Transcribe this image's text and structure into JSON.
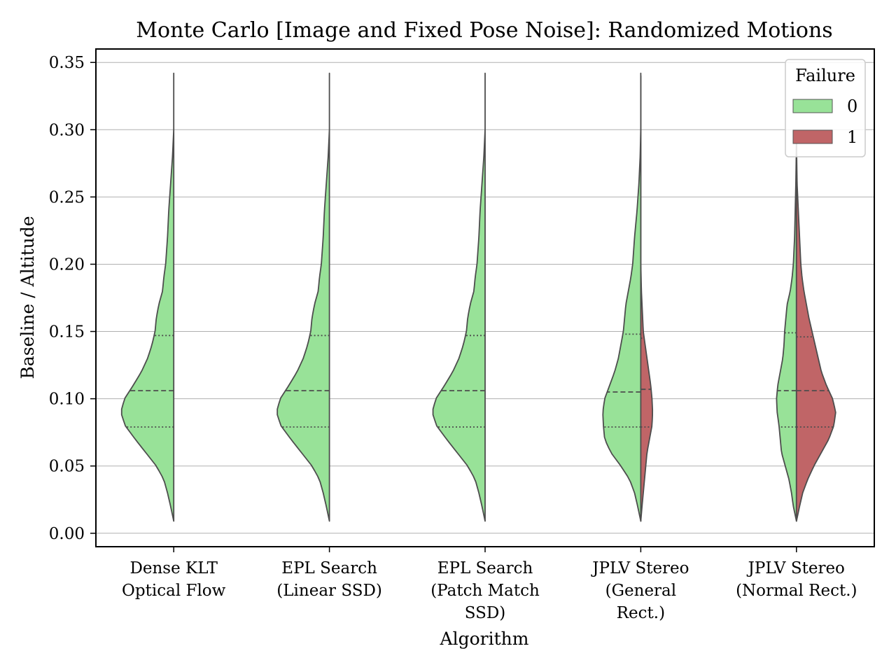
{
  "chart_data": {
    "type": "violin",
    "title": "Monte Carlo [Image and Fixed Pose Noise]: Randomized Motions",
    "xlabel": "Algorithm",
    "ylabel": "Baseline / Altitude",
    "ylim": [
      -0.01,
      0.36
    ],
    "yticks": [
      "0.00",
      "0.05",
      "0.10",
      "0.15",
      "0.20",
      "0.25",
      "0.30",
      "0.35"
    ],
    "grid": "horizontal",
    "legend": {
      "title": "Failure",
      "position": "top-right",
      "entries": [
        {
          "label": "0",
          "color": "#98e298"
        },
        {
          "label": "1",
          "color": "#c06567"
        }
      ]
    },
    "categories": [
      {
        "lines": [
          "Dense KLT",
          "Optical Flow"
        ]
      },
      {
        "lines": [
          "EPL Search",
          "(Linear SSD)"
        ]
      },
      {
        "lines": [
          "EPL Search",
          "(Patch Match",
          "SSD)"
        ]
      },
      {
        "lines": [
          "JPLV Stereo",
          "(General",
          "Rect.)"
        ]
      },
      {
        "lines": [
          "JPLV Stereo",
          "(Normal Rect.)"
        ]
      }
    ],
    "series": [
      {
        "name": "0",
        "color": "#98e298",
        "side": "left",
        "violins": [
          {
            "min": 0.009,
            "max": 0.342,
            "q1": 0.079,
            "median": 0.106,
            "q3": 0.147,
            "profile": [
              [
                0.009,
                0.0
              ],
              [
                0.02,
                0.05
              ],
              [
                0.03,
                0.1
              ],
              [
                0.04,
                0.16
              ],
              [
                0.05,
                0.28
              ],
              [
                0.06,
                0.45
              ],
              [
                0.07,
                0.62
              ],
              [
                0.08,
                0.78
              ],
              [
                0.09,
                0.85
              ],
              [
                0.1,
                0.79
              ],
              [
                0.11,
                0.65
              ],
              [
                0.12,
                0.52
              ],
              [
                0.13,
                0.42
              ],
              [
                0.14,
                0.35
              ],
              [
                0.15,
                0.3
              ],
              [
                0.16,
                0.28
              ],
              [
                0.17,
                0.24
              ],
              [
                0.18,
                0.18
              ],
              [
                0.19,
                0.16
              ],
              [
                0.2,
                0.13
              ],
              [
                0.22,
                0.1
              ],
              [
                0.24,
                0.08
              ],
              [
                0.26,
                0.05
              ],
              [
                0.28,
                0.02
              ],
              [
                0.3,
                0.0
              ],
              [
                0.342,
                0.0
              ]
            ]
          },
          {
            "min": 0.009,
            "max": 0.342,
            "q1": 0.079,
            "median": 0.106,
            "q3": 0.147,
            "profile": [
              [
                0.009,
                0.0
              ],
              [
                0.02,
                0.05
              ],
              [
                0.03,
                0.1
              ],
              [
                0.04,
                0.16
              ],
              [
                0.05,
                0.28
              ],
              [
                0.06,
                0.45
              ],
              [
                0.07,
                0.62
              ],
              [
                0.08,
                0.78
              ],
              [
                0.09,
                0.85
              ],
              [
                0.1,
                0.79
              ],
              [
                0.11,
                0.65
              ],
              [
                0.12,
                0.52
              ],
              [
                0.13,
                0.42
              ],
              [
                0.14,
                0.35
              ],
              [
                0.15,
                0.3
              ],
              [
                0.16,
                0.28
              ],
              [
                0.17,
                0.24
              ],
              [
                0.18,
                0.18
              ],
              [
                0.19,
                0.16
              ],
              [
                0.2,
                0.13
              ],
              [
                0.22,
                0.1
              ],
              [
                0.24,
                0.08
              ],
              [
                0.26,
                0.05
              ],
              [
                0.28,
                0.02
              ],
              [
                0.3,
                0.0
              ],
              [
                0.342,
                0.0
              ]
            ]
          },
          {
            "min": 0.009,
            "max": 0.342,
            "q1": 0.079,
            "median": 0.106,
            "q3": 0.147,
            "profile": [
              [
                0.009,
                0.0
              ],
              [
                0.02,
                0.05
              ],
              [
                0.03,
                0.1
              ],
              [
                0.04,
                0.16
              ],
              [
                0.05,
                0.28
              ],
              [
                0.06,
                0.45
              ],
              [
                0.07,
                0.62
              ],
              [
                0.08,
                0.78
              ],
              [
                0.09,
                0.85
              ],
              [
                0.1,
                0.79
              ],
              [
                0.11,
                0.65
              ],
              [
                0.12,
                0.52
              ],
              [
                0.13,
                0.42
              ],
              [
                0.14,
                0.35
              ],
              [
                0.15,
                0.3
              ],
              [
                0.16,
                0.28
              ],
              [
                0.17,
                0.24
              ],
              [
                0.18,
                0.18
              ],
              [
                0.19,
                0.16
              ],
              [
                0.2,
                0.13
              ],
              [
                0.22,
                0.1
              ],
              [
                0.24,
                0.08
              ],
              [
                0.26,
                0.05
              ],
              [
                0.28,
                0.02
              ],
              [
                0.3,
                0.0
              ],
              [
                0.342,
                0.0
              ]
            ]
          },
          {
            "min": 0.009,
            "max": 0.342,
            "q1": 0.079,
            "median": 0.105,
            "q3": 0.148,
            "profile": [
              [
                0.009,
                0.0
              ],
              [
                0.02,
                0.05
              ],
              [
                0.03,
                0.1
              ],
              [
                0.04,
                0.18
              ],
              [
                0.05,
                0.32
              ],
              [
                0.06,
                0.48
              ],
              [
                0.07,
                0.58
              ],
              [
                0.08,
                0.6
              ],
              [
                0.09,
                0.61
              ],
              [
                0.1,
                0.58
              ],
              [
                0.11,
                0.5
              ],
              [
                0.12,
                0.42
              ],
              [
                0.13,
                0.36
              ],
              [
                0.14,
                0.32
              ],
              [
                0.15,
                0.28
              ],
              [
                0.16,
                0.26
              ],
              [
                0.17,
                0.24
              ],
              [
                0.18,
                0.2
              ],
              [
                0.19,
                0.16
              ],
              [
                0.2,
                0.13
              ],
              [
                0.22,
                0.1
              ],
              [
                0.24,
                0.06
              ],
              [
                0.26,
                0.03
              ],
              [
                0.28,
                0.01
              ],
              [
                0.3,
                0.0
              ],
              [
                0.342,
                0.0
              ]
            ]
          },
          {
            "min": 0.009,
            "max": 0.29,
            "q1": 0.079,
            "median": 0.106,
            "q3": 0.149,
            "profile": [
              [
                0.009,
                0.0
              ],
              [
                0.02,
                0.05
              ],
              [
                0.03,
                0.08
              ],
              [
                0.04,
                0.12
              ],
              [
                0.05,
                0.18
              ],
              [
                0.06,
                0.24
              ],
              [
                0.07,
                0.26
              ],
              [
                0.08,
                0.28
              ],
              [
                0.09,
                0.31
              ],
              [
                0.1,
                0.32
              ],
              [
                0.11,
                0.3
              ],
              [
                0.12,
                0.26
              ],
              [
                0.13,
                0.22
              ],
              [
                0.14,
                0.2
              ],
              [
                0.15,
                0.19
              ],
              [
                0.16,
                0.17
              ],
              [
                0.17,
                0.15
              ],
              [
                0.18,
                0.1
              ],
              [
                0.19,
                0.07
              ],
              [
                0.2,
                0.05
              ],
              [
                0.22,
                0.03
              ],
              [
                0.24,
                0.02
              ],
              [
                0.26,
                0.01
              ],
              [
                0.29,
                0.0
              ]
            ]
          }
        ]
      },
      {
        "name": "1",
        "color": "#c06567",
        "side": "right",
        "violins": [
          null,
          null,
          null,
          {
            "min": 0.009,
            "max": 0.34,
            "q1": 0.079,
            "median": 0.107,
            "q3": 0.145,
            "profile": [
              [
                0.009,
                0.0
              ],
              [
                0.02,
                0.02
              ],
              [
                0.03,
                0.04
              ],
              [
                0.04,
                0.06
              ],
              [
                0.05,
                0.08
              ],
              [
                0.06,
                0.1
              ],
              [
                0.07,
                0.14
              ],
              [
                0.08,
                0.18
              ],
              [
                0.09,
                0.19
              ],
              [
                0.1,
                0.18
              ],
              [
                0.11,
                0.16
              ],
              [
                0.12,
                0.13
              ],
              [
                0.13,
                0.1
              ],
              [
                0.14,
                0.07
              ],
              [
                0.15,
                0.04
              ],
              [
                0.16,
                0.03
              ],
              [
                0.17,
                0.02
              ],
              [
                0.18,
                0.01
              ],
              [
                0.2,
                0.0
              ],
              [
                0.34,
                0.0
              ]
            ]
          },
          {
            "min": 0.009,
            "max": 0.29,
            "q1": 0.079,
            "median": 0.106,
            "q3": 0.146,
            "profile": [
              [
                0.009,
                0.0
              ],
              [
                0.02,
                0.05
              ],
              [
                0.03,
                0.1
              ],
              [
                0.04,
                0.18
              ],
              [
                0.05,
                0.28
              ],
              [
                0.06,
                0.4
              ],
              [
                0.07,
                0.52
              ],
              [
                0.08,
                0.6
              ],
              [
                0.09,
                0.63
              ],
              [
                0.1,
                0.58
              ],
              [
                0.11,
                0.48
              ],
              [
                0.12,
                0.4
              ],
              [
                0.13,
                0.35
              ],
              [
                0.14,
                0.3
              ],
              [
                0.15,
                0.25
              ],
              [
                0.16,
                0.2
              ],
              [
                0.17,
                0.16
              ],
              [
                0.18,
                0.12
              ],
              [
                0.19,
                0.09
              ],
              [
                0.2,
                0.07
              ],
              [
                0.22,
                0.05
              ],
              [
                0.24,
                0.03
              ],
              [
                0.26,
                0.01
              ],
              [
                0.29,
                0.0
              ]
            ]
          }
        ]
      }
    ]
  }
}
